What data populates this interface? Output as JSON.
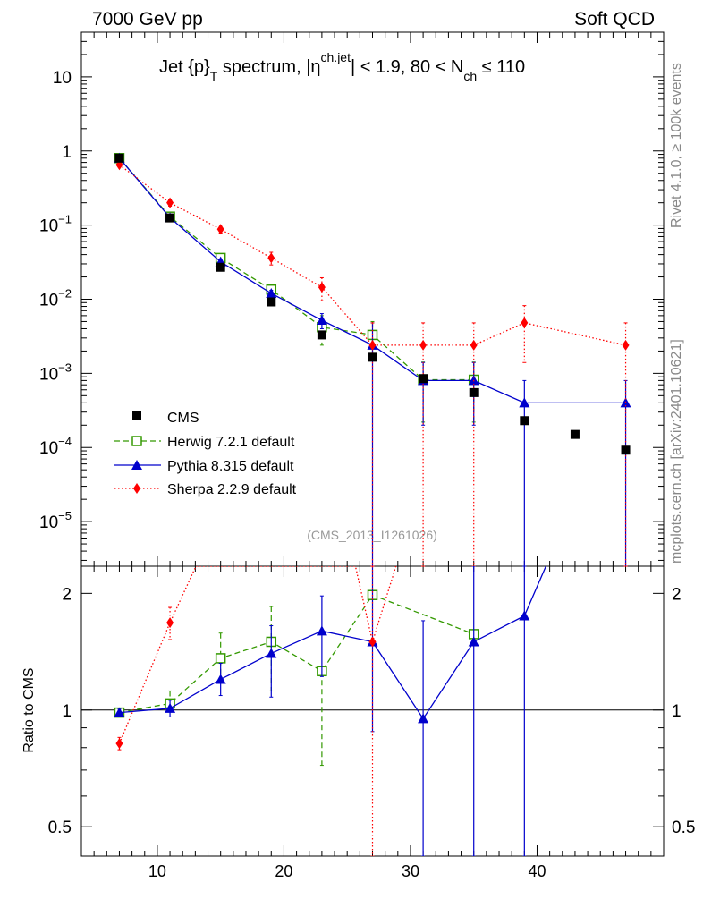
{
  "header": {
    "left": "7000 GeV pp",
    "right": "Soft QCD"
  },
  "side_labels": {
    "rivet": "Rivet 4.1.0, ≥ 100k events",
    "mcplots": "mcplots.cern.ch [arXiv:2401.10621]"
  },
  "watermark": "(CMS_2013_I1261026)",
  "title_parts": {
    "a": "Jet {p}",
    "a_sub": "T",
    "b": " spectrum, |η",
    "b_sup": "ch.jet",
    "c": "| < 1.9, 80 < N",
    "c_sub": "ch",
    "d": " ≤ 110"
  },
  "colors": {
    "cms": "#000000",
    "herwig": "#339900",
    "pythia": "#0000cc",
    "sherpa": "#ff0000"
  },
  "chart_data": {
    "type": "line",
    "title": "Jet {p}_T spectrum, |η^{ch.jet}| < 1.9, 80 < N_ch ≤ 110",
    "xlim": [
      4,
      50
    ],
    "x_ticks": [
      "10",
      "20",
      "30",
      "40"
    ],
    "top_panel": {
      "yscale": "log",
      "ylim": [
        2.5e-06,
        40
      ],
      "y_ticks": [
        {
          "value": 10,
          "base": "10",
          "exp": ""
        },
        {
          "value": 1,
          "base": "1",
          "exp": ""
        },
        {
          "value": 0.1,
          "base": "10",
          "exp": "−1"
        },
        {
          "value": 0.01,
          "base": "10",
          "exp": "−2"
        },
        {
          "value": 0.001,
          "base": "10",
          "exp": "−3"
        },
        {
          "value": 0.0001,
          "base": "10",
          "exp": "−4"
        },
        {
          "value": 1e-05,
          "base": "10",
          "exp": "−5"
        }
      ],
      "series": [
        {
          "name": "CMS",
          "key": "cms",
          "style": "marker",
          "x": [
            7,
            11,
            15,
            19,
            23,
            27,
            31,
            35,
            39,
            43,
            47
          ],
          "y": [
            0.8,
            0.125,
            0.027,
            0.0092,
            0.0033,
            0.00165,
            0.00085,
            0.00055,
            0.00023,
            0.00015,
            9.2e-05
          ]
        },
        {
          "name": "Herwig 7.2.1 default",
          "key": "herwig",
          "style": "dashed",
          "x": [
            7,
            11,
            15,
            19,
            23,
            27,
            31,
            35
          ],
          "y": [
            0.8,
            0.13,
            0.036,
            0.0135,
            0.0042,
            0.0033,
            0.00082,
            0.00082
          ],
          "err": [
            0.02,
            0.005,
            0.003,
            0.0015,
            0.0018,
            0.0017,
            0.0006,
            0.0006
          ]
        },
        {
          "name": "Pythia 8.315 default",
          "key": "pythia",
          "style": "solid",
          "x": [
            7,
            11,
            15,
            19,
            23,
            27,
            31,
            35,
            39,
            47
          ],
          "y": [
            0.8,
            0.126,
            0.032,
            0.012,
            0.0052,
            0.0024,
            0.0008,
            0.0008,
            0.0004,
            0.0004
          ],
          "err": [
            0.02,
            0.005,
            0.002,
            0.0012,
            0.0012,
            0.0024,
            0.0006,
            0.0006,
            0.0004,
            0.0004
          ]
        },
        {
          "name": "Sherpa 2.2.9 default",
          "key": "sherpa",
          "style": "dotted",
          "x": [
            7,
            11,
            15,
            19,
            23,
            27,
            31,
            35,
            39,
            47
          ],
          "y": [
            0.65,
            0.2,
            0.088,
            0.036,
            0.0145,
            0.0024,
            0.0024,
            0.0024,
            0.0048,
            0.0024
          ],
          "err": [
            0.03,
            0.02,
            0.012,
            0.007,
            0.005,
            0.0024,
            0.0024,
            0.0024,
            0.0034,
            0.0024
          ]
        }
      ]
    },
    "ratio_panel": {
      "ylabel": "Ratio to CMS",
      "yscale": "log",
      "ylim": [
        0.42,
        2.35
      ],
      "y_ticks": [
        {
          "value": 2,
          "label": "2"
        },
        {
          "value": 1,
          "label": "1"
        },
        {
          "value": 0.5,
          "label": "0.5"
        }
      ],
      "reference": 1,
      "series": [
        {
          "key": "herwig",
          "style": "dashed",
          "x": [
            7,
            11,
            15,
            19,
            23,
            27,
            35
          ],
          "y": [
            0.985,
            1.04,
            1.36,
            1.5,
            1.26,
            1.98,
            1.57
          ],
          "lo": [
            0.965,
            1.0,
            1.2,
            1.12,
            0.72,
            1.98,
            1.57
          ],
          "hi": [
            1.005,
            1.12,
            1.58,
            1.85,
            1.26,
            1.98,
            1.57
          ]
        },
        {
          "key": "pythia",
          "style": "solid",
          "x": [
            7,
            11,
            15,
            19,
            23,
            27,
            31,
            35,
            39,
            40.7
          ],
          "y": [
            0.985,
            1.01,
            1.2,
            1.4,
            1.6,
            1.5,
            0.95,
            1.5,
            1.75,
            2.35
          ],
          "lo": [
            0.965,
            0.96,
            1.09,
            1.08,
            1.22,
            0.88,
            0.3,
            0.38,
            0.3,
            null
          ],
          "hi": [
            1.005,
            1.06,
            1.32,
            1.65,
            1.97,
            2.35,
            1.7,
            2.35,
            2.35,
            null
          ]
        },
        {
          "key": "sherpa",
          "style": "dotted",
          "x": [
            7,
            11,
            13.05,
            25.65,
            27,
            28.85
          ],
          "y": [
            0.82,
            1.68,
            2.35,
            2.35,
            1.5,
            2.35
          ],
          "lo": [
            0.79,
            1.52,
            null,
            null,
            0.3,
            null
          ],
          "hi": [
            0.85,
            1.84,
            null,
            null,
            2.35,
            null
          ]
        }
      ]
    }
  }
}
